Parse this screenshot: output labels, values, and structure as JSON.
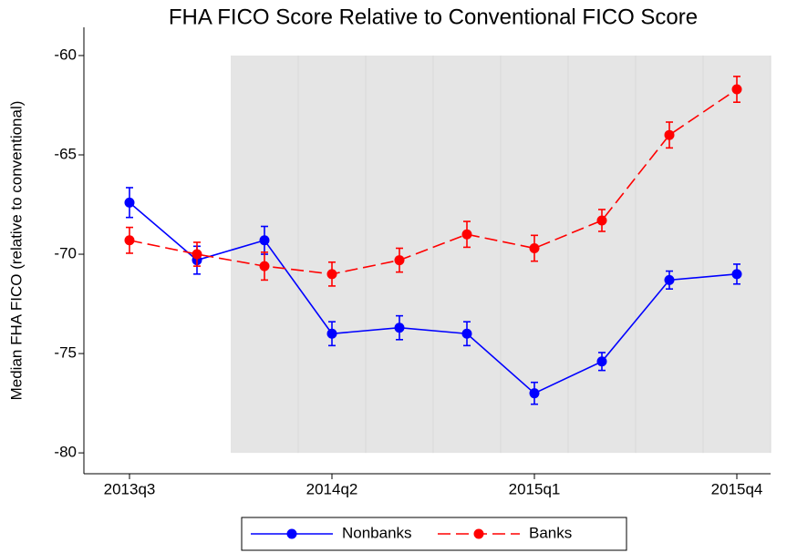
{
  "chart_data": {
    "type": "line",
    "title": "FHA FICO Score Relative to Conventional FICO Score",
    "y_label": "Median FHA FICO (relative to conventional)",
    "categories": [
      "2013q3",
      null,
      null,
      "2014q2",
      null,
      null,
      "2015q1",
      null,
      null,
      "2015q4"
    ],
    "series": [
      {
        "name": "Nonbanks",
        "color": "#0000ff",
        "linestyle": "solid",
        "values": [
          -67.4,
          -70.3,
          -69.3,
          -74.0,
          -73.7,
          -74.0,
          -77.0,
          -75.4,
          -71.3,
          -71.0
        ],
        "errors": [
          0.75,
          0.7,
          0.7,
          0.6,
          0.6,
          0.6,
          0.55,
          0.45,
          0.45,
          0.5
        ]
      },
      {
        "name": "Banks",
        "color": "#ff0000",
        "linestyle": "dashed",
        "values": [
          -69.3,
          -70.0,
          -70.6,
          -71.0,
          -70.3,
          -69.0,
          -69.7,
          -68.3,
          -64.0,
          -61.7
        ],
        "errors": [
          0.65,
          0.6,
          0.7,
          0.6,
          0.6,
          0.65,
          0.65,
          0.55,
          0.65,
          0.65
        ]
      }
    ],
    "ylim": [
      -81.05,
      -58.58
    ],
    "yticks": [
      -60,
      -65,
      -70,
      -75,
      -80
    ],
    "legend": "bottom"
  }
}
